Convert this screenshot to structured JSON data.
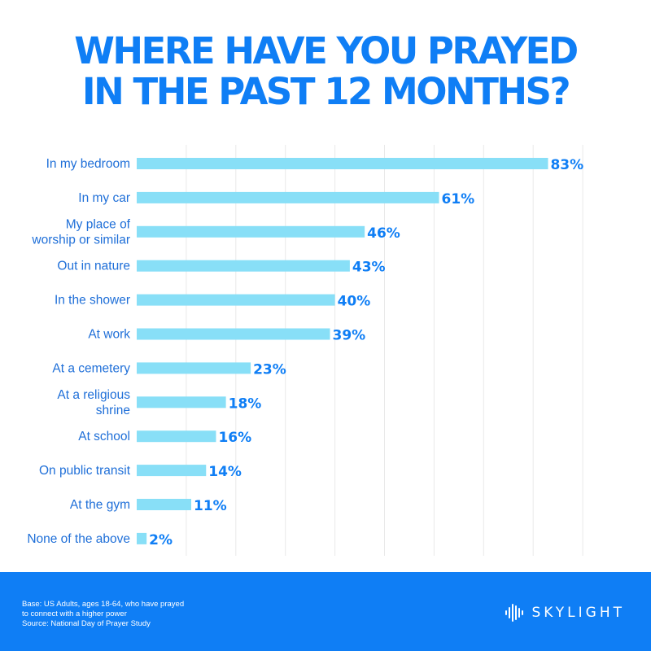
{
  "title": {
    "line1": "WHERE HAVE YOU PRAYED",
    "line2": "IN THE PAST 12 MONTHS?"
  },
  "chart_data": {
    "type": "bar",
    "orientation": "horizontal",
    "title": "WHERE HAVE YOU PRAYED IN THE PAST 12 MONTHS?",
    "categories": [
      [
        "In my bedroom"
      ],
      [
        "In my car"
      ],
      [
        "My place of",
        "worship or similar"
      ],
      [
        "Out in nature"
      ],
      [
        "In the shower"
      ],
      [
        "At work"
      ],
      [
        "At a cemetery"
      ],
      [
        "At a religious",
        "shrine"
      ],
      [
        "At school"
      ],
      [
        "On public transit"
      ],
      [
        "At the gym"
      ],
      [
        "None of the above"
      ]
    ],
    "values": [
      83,
      61,
      46,
      43,
      40,
      39,
      23,
      18,
      16,
      14,
      11,
      2
    ],
    "value_labels": [
      "83%",
      "61%",
      "46%",
      "43%",
      "40%",
      "39%",
      "23%",
      "18%",
      "16%",
      "14%",
      "11%",
      "2%"
    ],
    "xlim": [
      0,
      90
    ],
    "gridlines": true,
    "bar_color": "#88dff7",
    "label_color": "#0f7ef5"
  },
  "footer": {
    "note_line1": "Base: US Adults, ages 18-64, who have prayed",
    "note_line2": "to connect with a higher power",
    "note_line3": "Source: National Day of Prayer Study",
    "brand_name": "SKYLIGHT",
    "brand_icon": "sound-wave-logo-icon",
    "background_color": "#0f7ef5"
  }
}
